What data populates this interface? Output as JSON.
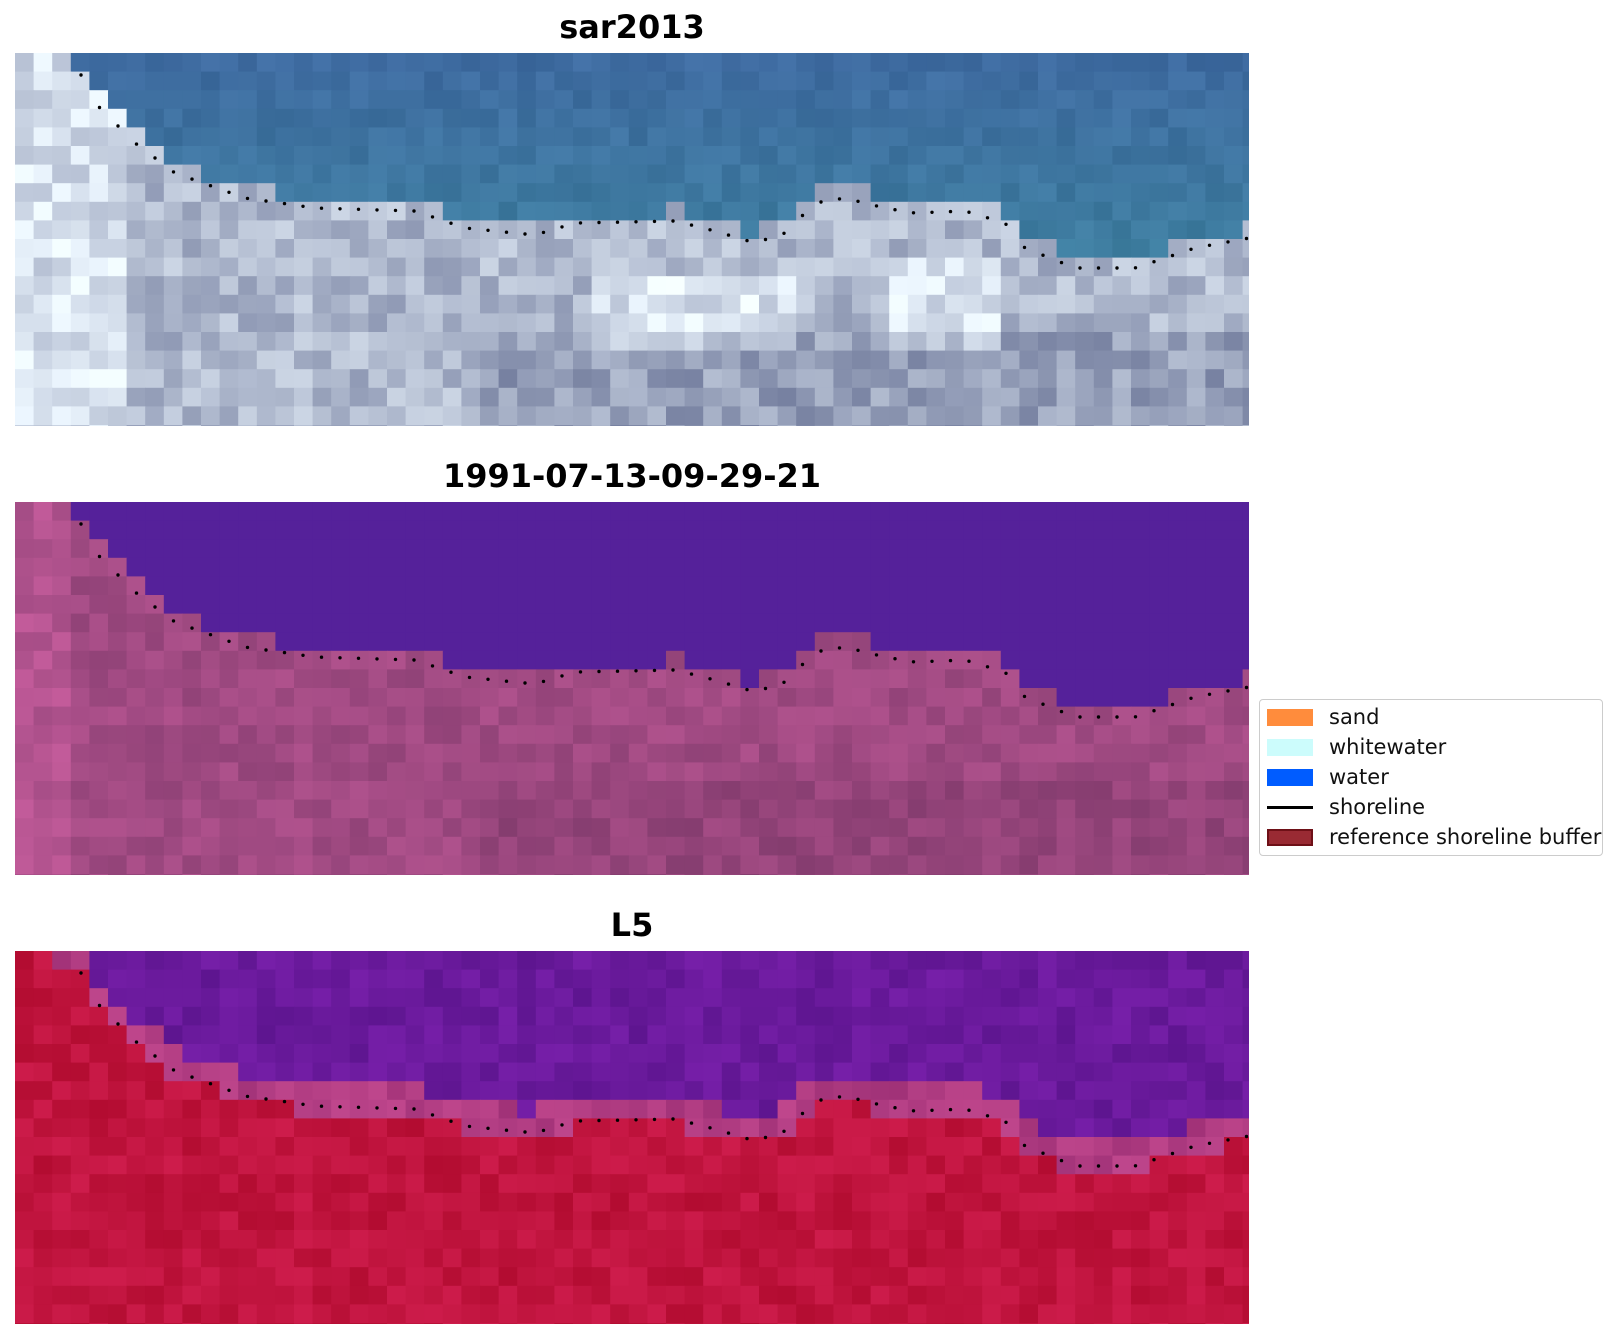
{
  "panels": [
    {
      "title": "sar2013",
      "style": "rgb-satellite"
    },
    {
      "title": "1991-07-13-09-29-21",
      "style": "classified"
    },
    {
      "title": "L5",
      "style": "index"
    }
  ],
  "legend": {
    "placement": "center-right",
    "items": [
      {
        "label": "sand",
        "kind": "patch",
        "color": "#ff8c3c"
      },
      {
        "label": "whitewater",
        "kind": "patch",
        "color": "#ccfcfc"
      },
      {
        "label": "water",
        "kind": "patch",
        "color": "#005cff"
      },
      {
        "label": "shoreline",
        "kind": "line",
        "color": "#000000"
      },
      {
        "label": "reference shoreline buffer",
        "kind": "patch",
        "color": "#992a33",
        "edge": "#6e1017"
      }
    ]
  },
  "colors": {
    "water_rgb": "#3e6aa0",
    "land_rgb": "#a8b2c8",
    "water_class": "#55219a",
    "land_class": "#a04a82",
    "water_index": "#6a1a9c",
    "land_index": "#c0143e",
    "shoreline_dots": "#000000"
  }
}
